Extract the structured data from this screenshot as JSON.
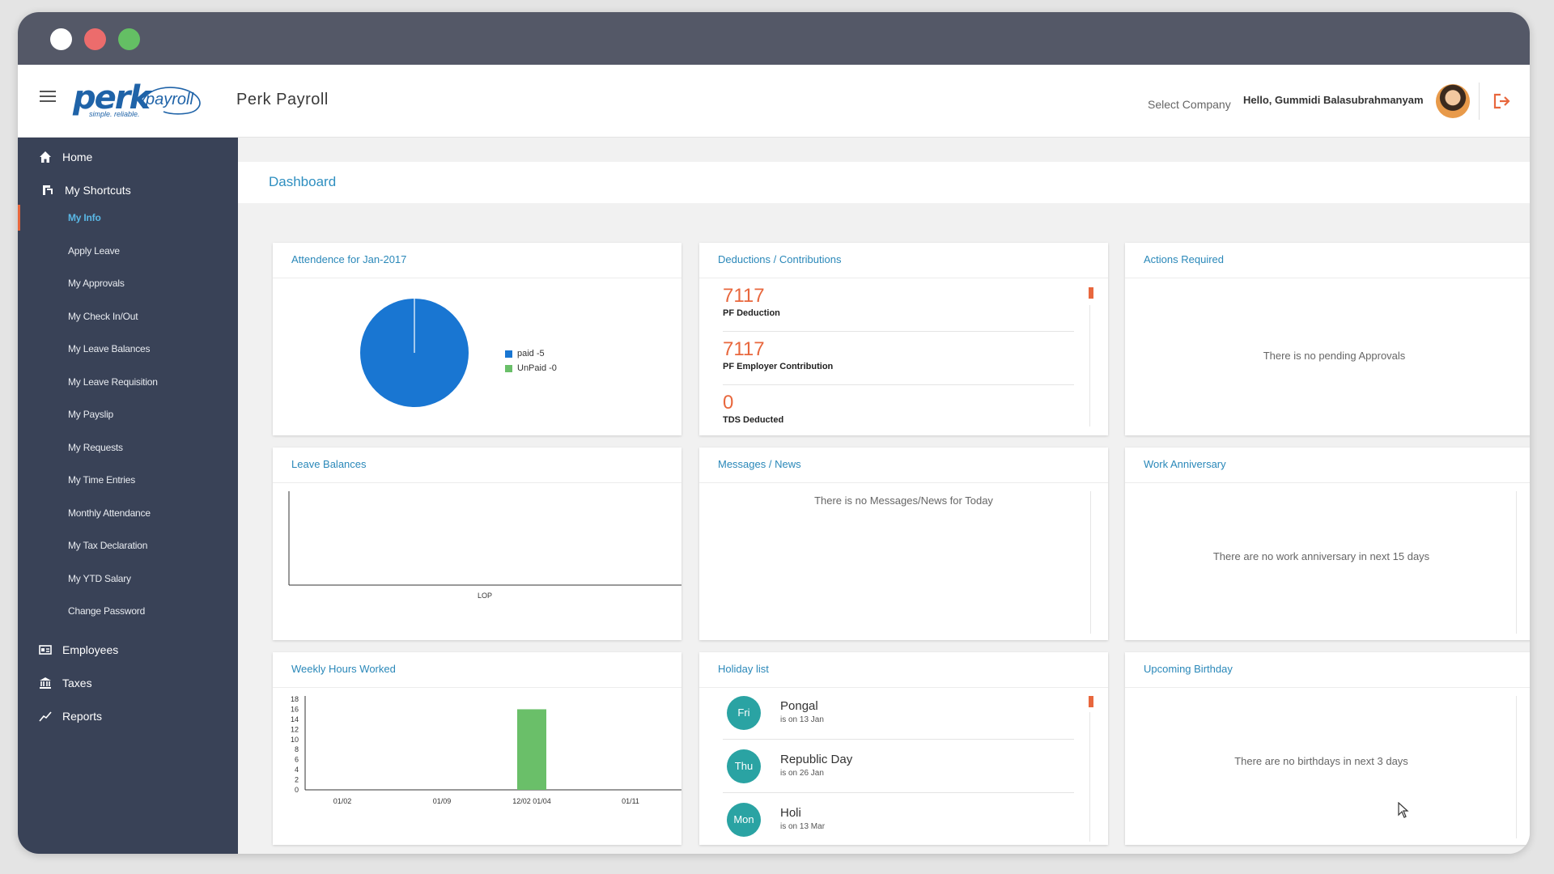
{
  "window": {
    "controls": [
      "close",
      "minimize",
      "maximize"
    ]
  },
  "header": {
    "logo_text": "perk",
    "logo_sub": "payroll",
    "logo_tagline": "simple. reliable.",
    "app_title": "Perk Payroll",
    "select_company": "Select Company",
    "greeting": "Hello, Gummidi Balasubrahmanyam"
  },
  "sidebar": {
    "home": {
      "label": "Home",
      "icon": "home-icon"
    },
    "shortcuts": {
      "label": "My Shortcuts",
      "icon": "shortcut-icon"
    },
    "sub_items": [
      {
        "label": "My Info",
        "active": true
      },
      {
        "label": "Apply Leave"
      },
      {
        "label": "My Approvals"
      },
      {
        "label": "My Check In/Out"
      },
      {
        "label": "My Leave Balances"
      },
      {
        "label": "My Leave Requisition"
      },
      {
        "label": "My Payslip"
      },
      {
        "label": "My Requests"
      },
      {
        "label": "My Time Entries"
      },
      {
        "label": "Monthly Attendance"
      },
      {
        "label": "My Tax Declaration"
      },
      {
        "label": "My YTD Salary"
      },
      {
        "label": "Change Password"
      }
    ],
    "employees": {
      "label": "Employees",
      "icon": "id-card-icon"
    },
    "taxes": {
      "label": "Taxes",
      "icon": "bank-icon"
    },
    "reports": {
      "label": "Reports",
      "icon": "line-chart-icon"
    }
  },
  "page": {
    "title": "Dashboard"
  },
  "cards": {
    "attendance": {
      "title": "Attendence for Jan-2017",
      "legend": [
        {
          "label": "paid -5",
          "color": "#1976d2"
        },
        {
          "label": "UnPaid -0",
          "color": "#6abf69"
        }
      ]
    },
    "deductions": {
      "title": "Deductions / Contributions",
      "items": [
        {
          "value": "7117",
          "label": "PF Deduction"
        },
        {
          "value": "7117",
          "label": "PF Employer Contribution"
        },
        {
          "value": "0",
          "label": "TDS Deducted"
        }
      ]
    },
    "actions": {
      "title": "Actions Required",
      "empty": "There is no pending Approvals"
    },
    "leave_balances": {
      "title": "Leave Balances",
      "x_label": "LOP"
    },
    "messages": {
      "title": "Messages / News",
      "empty": "There is no Messages/News for Today"
    },
    "work_anniversary": {
      "title": "Work Anniversary",
      "empty": "There are no work anniversary in next 15 days"
    },
    "weekly_hours": {
      "title": "Weekly Hours Worked"
    },
    "holidays": {
      "title": "Holiday list",
      "items": [
        {
          "day": "Fri",
          "name": "Pongal",
          "date": "is on 13 Jan"
        },
        {
          "day": "Thu",
          "name": "Republic Day",
          "date": "is on 26 Jan"
        },
        {
          "day": "Mon",
          "name": "Holi",
          "date": "is on 13 Mar"
        }
      ]
    },
    "birthday": {
      "title": "Upcoming Birthday",
      "empty": "There are no birthdays in next 3 days"
    }
  },
  "chart_data": [
    {
      "type": "pie",
      "categories": [
        "paid",
        "UnPaid"
      ],
      "values": [
        5,
        0
      ],
      "colors": [
        "#1976d2",
        "#6abf69"
      ],
      "legend": "right"
    },
    {
      "type": "bar",
      "categories": [
        "LOP"
      ],
      "values": [
        0
      ],
      "grid": false
    },
    {
      "type": "bar",
      "categories": [
        "01/02",
        "01/09",
        "12/02 01/04",
        "01/11"
      ],
      "values": [
        0,
        0,
        16,
        0
      ],
      "ylim": [
        0,
        18
      ],
      "yticks": [
        0,
        2,
        4,
        6,
        8,
        10,
        12,
        14,
        16,
        18
      ],
      "color": "#6abf69",
      "grid": false
    }
  ]
}
